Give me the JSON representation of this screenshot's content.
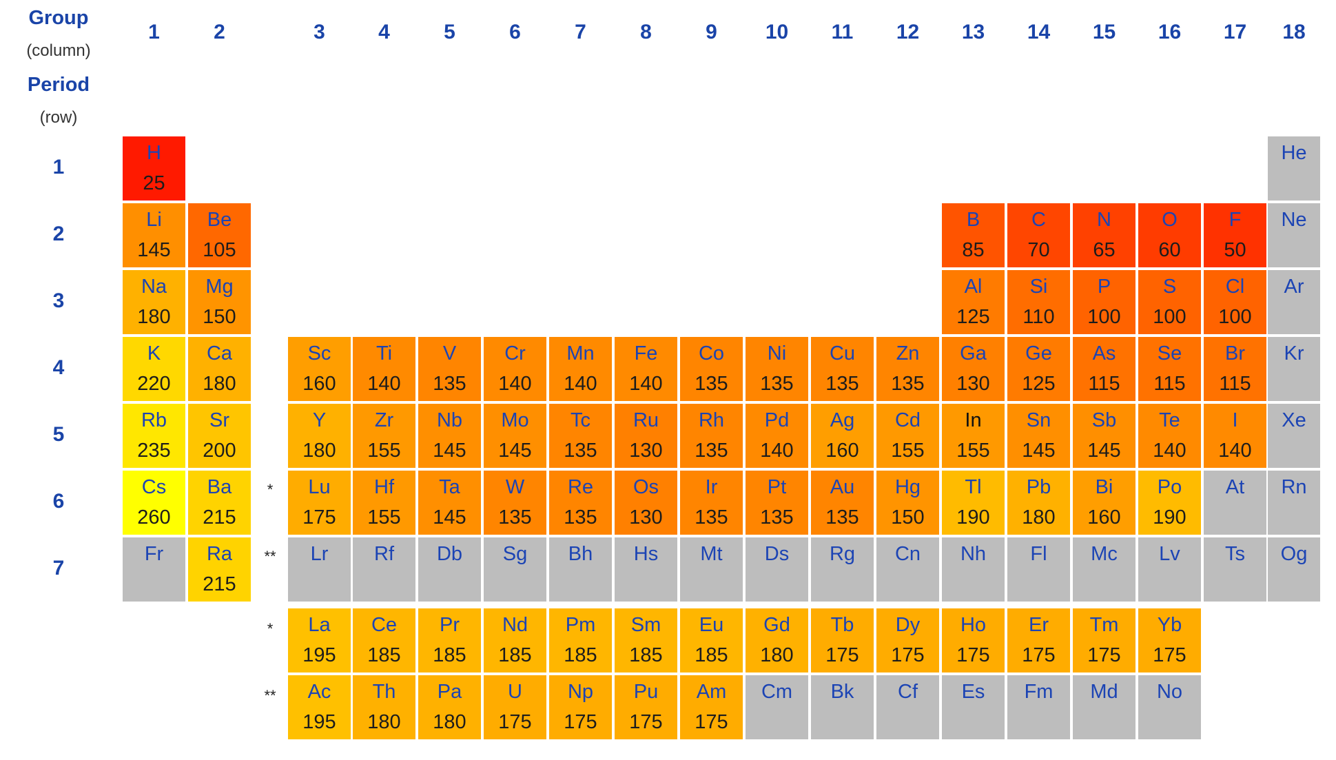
{
  "header": {
    "group_label": "Group",
    "group_sub": "(column)",
    "period_label": "Period",
    "period_sub": "(row)"
  },
  "groups": [
    "1",
    "2",
    "3",
    "4",
    "5",
    "6",
    "7",
    "8",
    "9",
    "10",
    "11",
    "12",
    "13",
    "14",
    "15",
    "16",
    "17",
    "18"
  ],
  "periods": [
    "1",
    "2",
    "3",
    "4",
    "5",
    "6",
    "7"
  ],
  "series_markers": {
    "lanthanide": "*",
    "actinide": "**"
  },
  "colors": {
    "no_data": "#bdbdbd",
    "scale_min_value": 25,
    "scale_min_color": "#ff1a00",
    "scale_max_value": 260,
    "scale_max_color": "#ffff00",
    "symbol_text": "#1c44b4",
    "symbol_text_special": "#111111"
  },
  "elements": [
    {
      "symbol": "H",
      "value": 25,
      "group": 1,
      "period": 1
    },
    {
      "symbol": "He",
      "value": null,
      "group": 18,
      "period": 1
    },
    {
      "symbol": "Li",
      "value": 145,
      "group": 1,
      "period": 2
    },
    {
      "symbol": "Be",
      "value": 105,
      "group": 2,
      "period": 2
    },
    {
      "symbol": "B",
      "value": 85,
      "group": 13,
      "period": 2
    },
    {
      "symbol": "C",
      "value": 70,
      "group": 14,
      "period": 2
    },
    {
      "symbol": "N",
      "value": 65,
      "group": 15,
      "period": 2
    },
    {
      "symbol": "O",
      "value": 60,
      "group": 16,
      "period": 2
    },
    {
      "symbol": "F",
      "value": 50,
      "group": 17,
      "period": 2
    },
    {
      "symbol": "Ne",
      "value": null,
      "group": 18,
      "period": 2
    },
    {
      "symbol": "Na",
      "value": 180,
      "group": 1,
      "period": 3
    },
    {
      "symbol": "Mg",
      "value": 150,
      "group": 2,
      "period": 3
    },
    {
      "symbol": "Al",
      "value": 125,
      "group": 13,
      "period": 3
    },
    {
      "symbol": "Si",
      "value": 110,
      "group": 14,
      "period": 3
    },
    {
      "symbol": "P",
      "value": 100,
      "group": 15,
      "period": 3
    },
    {
      "symbol": "S",
      "value": 100,
      "group": 16,
      "period": 3
    },
    {
      "symbol": "Cl",
      "value": 100,
      "group": 17,
      "period": 3
    },
    {
      "symbol": "Ar",
      "value": null,
      "group": 18,
      "period": 3
    },
    {
      "symbol": "K",
      "value": 220,
      "group": 1,
      "period": 4
    },
    {
      "symbol": "Ca",
      "value": 180,
      "group": 2,
      "period": 4
    },
    {
      "symbol": "Sc",
      "value": 160,
      "group": 3,
      "period": 4
    },
    {
      "symbol": "Ti",
      "value": 140,
      "group": 4,
      "period": 4
    },
    {
      "symbol": "V",
      "value": 135,
      "group": 5,
      "period": 4
    },
    {
      "symbol": "Cr",
      "value": 140,
      "group": 6,
      "period": 4
    },
    {
      "symbol": "Mn",
      "value": 140,
      "group": 7,
      "period": 4
    },
    {
      "symbol": "Fe",
      "value": 140,
      "group": 8,
      "period": 4
    },
    {
      "symbol": "Co",
      "value": 135,
      "group": 9,
      "period": 4
    },
    {
      "symbol": "Ni",
      "value": 135,
      "group": 10,
      "period": 4
    },
    {
      "symbol": "Cu",
      "value": 135,
      "group": 11,
      "period": 4
    },
    {
      "symbol": "Zn",
      "value": 135,
      "group": 12,
      "period": 4
    },
    {
      "symbol": "Ga",
      "value": 130,
      "group": 13,
      "period": 4
    },
    {
      "symbol": "Ge",
      "value": 125,
      "group": 14,
      "period": 4
    },
    {
      "symbol": "As",
      "value": 115,
      "group": 15,
      "period": 4
    },
    {
      "symbol": "Se",
      "value": 115,
      "group": 16,
      "period": 4
    },
    {
      "symbol": "Br",
      "value": 115,
      "group": 17,
      "period": 4
    },
    {
      "symbol": "Kr",
      "value": null,
      "group": 18,
      "period": 4
    },
    {
      "symbol": "Rb",
      "value": 235,
      "group": 1,
      "period": 5
    },
    {
      "symbol": "Sr",
      "value": 200,
      "group": 2,
      "period": 5
    },
    {
      "symbol": "Y",
      "value": 180,
      "group": 3,
      "period": 5
    },
    {
      "symbol": "Zr",
      "value": 155,
      "group": 4,
      "period": 5
    },
    {
      "symbol": "Nb",
      "value": 145,
      "group": 5,
      "period": 5
    },
    {
      "symbol": "Mo",
      "value": 145,
      "group": 6,
      "period": 5
    },
    {
      "symbol": "Tc",
      "value": 135,
      "group": 7,
      "period": 5
    },
    {
      "symbol": "Ru",
      "value": 130,
      "group": 8,
      "period": 5
    },
    {
      "symbol": "Rh",
      "value": 135,
      "group": 9,
      "period": 5
    },
    {
      "symbol": "Pd",
      "value": 140,
      "group": 10,
      "period": 5
    },
    {
      "symbol": "Ag",
      "value": 160,
      "group": 11,
      "period": 5
    },
    {
      "symbol": "Cd",
      "value": 155,
      "group": 12,
      "period": 5
    },
    {
      "symbol": "In",
      "value": 155,
      "group": 13,
      "period": 5,
      "dark_symbol": true
    },
    {
      "symbol": "Sn",
      "value": 145,
      "group": 14,
      "period": 5
    },
    {
      "symbol": "Sb",
      "value": 145,
      "group": 15,
      "period": 5
    },
    {
      "symbol": "Te",
      "value": 140,
      "group": 16,
      "period": 5
    },
    {
      "symbol": "I",
      "value": 140,
      "group": 17,
      "period": 5
    },
    {
      "symbol": "Xe",
      "value": null,
      "group": 18,
      "period": 5
    },
    {
      "symbol": "Cs",
      "value": 260,
      "group": 1,
      "period": 6
    },
    {
      "symbol": "Ba",
      "value": 215,
      "group": 2,
      "period": 6
    },
    {
      "symbol": "Lu",
      "value": 175,
      "group": 3,
      "period": 6
    },
    {
      "symbol": "Hf",
      "value": 155,
      "group": 4,
      "period": 6
    },
    {
      "symbol": "Ta",
      "value": 145,
      "group": 5,
      "period": 6
    },
    {
      "symbol": "W",
      "value": 135,
      "group": 6,
      "period": 6
    },
    {
      "symbol": "Re",
      "value": 135,
      "group": 7,
      "period": 6
    },
    {
      "symbol": "Os",
      "value": 130,
      "group": 8,
      "period": 6
    },
    {
      "symbol": "Ir",
      "value": 135,
      "group": 9,
      "period": 6
    },
    {
      "symbol": "Pt",
      "value": 135,
      "group": 10,
      "period": 6
    },
    {
      "symbol": "Au",
      "value": 135,
      "group": 11,
      "period": 6
    },
    {
      "symbol": "Hg",
      "value": 150,
      "group": 12,
      "period": 6
    },
    {
      "symbol": "Tl",
      "value": 190,
      "group": 13,
      "period": 6
    },
    {
      "symbol": "Pb",
      "value": 180,
      "group": 14,
      "period": 6
    },
    {
      "symbol": "Bi",
      "value": 160,
      "group": 15,
      "period": 6
    },
    {
      "symbol": "Po",
      "value": 190,
      "group": 16,
      "period": 6
    },
    {
      "symbol": "At",
      "value": null,
      "group": 17,
      "period": 6
    },
    {
      "symbol": "Rn",
      "value": null,
      "group": 18,
      "period": 6
    },
    {
      "symbol": "Fr",
      "value": null,
      "group": 1,
      "period": 7
    },
    {
      "symbol": "Ra",
      "value": 215,
      "group": 2,
      "period": 7
    },
    {
      "symbol": "Lr",
      "value": null,
      "group": 3,
      "period": 7
    },
    {
      "symbol": "Rf",
      "value": null,
      "group": 4,
      "period": 7
    },
    {
      "symbol": "Db",
      "value": null,
      "group": 5,
      "period": 7
    },
    {
      "symbol": "Sg",
      "value": null,
      "group": 6,
      "period": 7
    },
    {
      "symbol": "Bh",
      "value": null,
      "group": 7,
      "period": 7
    },
    {
      "symbol": "Hs",
      "value": null,
      "group": 8,
      "period": 7
    },
    {
      "symbol": "Mt",
      "value": null,
      "group": 9,
      "period": 7
    },
    {
      "symbol": "Ds",
      "value": null,
      "group": 10,
      "period": 7
    },
    {
      "symbol": "Rg",
      "value": null,
      "group": 11,
      "period": 7
    },
    {
      "symbol": "Cn",
      "value": null,
      "group": 12,
      "period": 7
    },
    {
      "symbol": "Nh",
      "value": null,
      "group": 13,
      "period": 7
    },
    {
      "symbol": "Fl",
      "value": null,
      "group": 14,
      "period": 7
    },
    {
      "symbol": "Mc",
      "value": null,
      "group": 15,
      "period": 7
    },
    {
      "symbol": "Lv",
      "value": null,
      "group": 16,
      "period": 7
    },
    {
      "symbol": "Ts",
      "value": null,
      "group": 17,
      "period": 7
    },
    {
      "symbol": "Og",
      "value": null,
      "group": 18,
      "period": 7
    }
  ],
  "lanthanides": [
    {
      "symbol": "La",
      "value": 195
    },
    {
      "symbol": "Ce",
      "value": 185
    },
    {
      "symbol": "Pr",
      "value": 185
    },
    {
      "symbol": "Nd",
      "value": 185
    },
    {
      "symbol": "Pm",
      "value": 185
    },
    {
      "symbol": "Sm",
      "value": 185
    },
    {
      "symbol": "Eu",
      "value": 185
    },
    {
      "symbol": "Gd",
      "value": 180
    },
    {
      "symbol": "Tb",
      "value": 175
    },
    {
      "symbol": "Dy",
      "value": 175
    },
    {
      "symbol": "Ho",
      "value": 175
    },
    {
      "symbol": "Er",
      "value": 175
    },
    {
      "symbol": "Tm",
      "value": 175
    },
    {
      "symbol": "Yb",
      "value": 175
    }
  ],
  "actinides": [
    {
      "symbol": "Ac",
      "value": 195
    },
    {
      "symbol": "Th",
      "value": 180
    },
    {
      "symbol": "Pa",
      "value": 180
    },
    {
      "symbol": "U",
      "value": 175
    },
    {
      "symbol": "Np",
      "value": 175
    },
    {
      "symbol": "Pu",
      "value": 175
    },
    {
      "symbol": "Am",
      "value": 175
    },
    {
      "symbol": "Cm",
      "value": null
    },
    {
      "symbol": "Bk",
      "value": null
    },
    {
      "symbol": "Cf",
      "value": null
    },
    {
      "symbol": "Es",
      "value": null
    },
    {
      "symbol": "Fm",
      "value": null
    },
    {
      "symbol": "Md",
      "value": null
    },
    {
      "symbol": "No",
      "value": null
    }
  ]
}
